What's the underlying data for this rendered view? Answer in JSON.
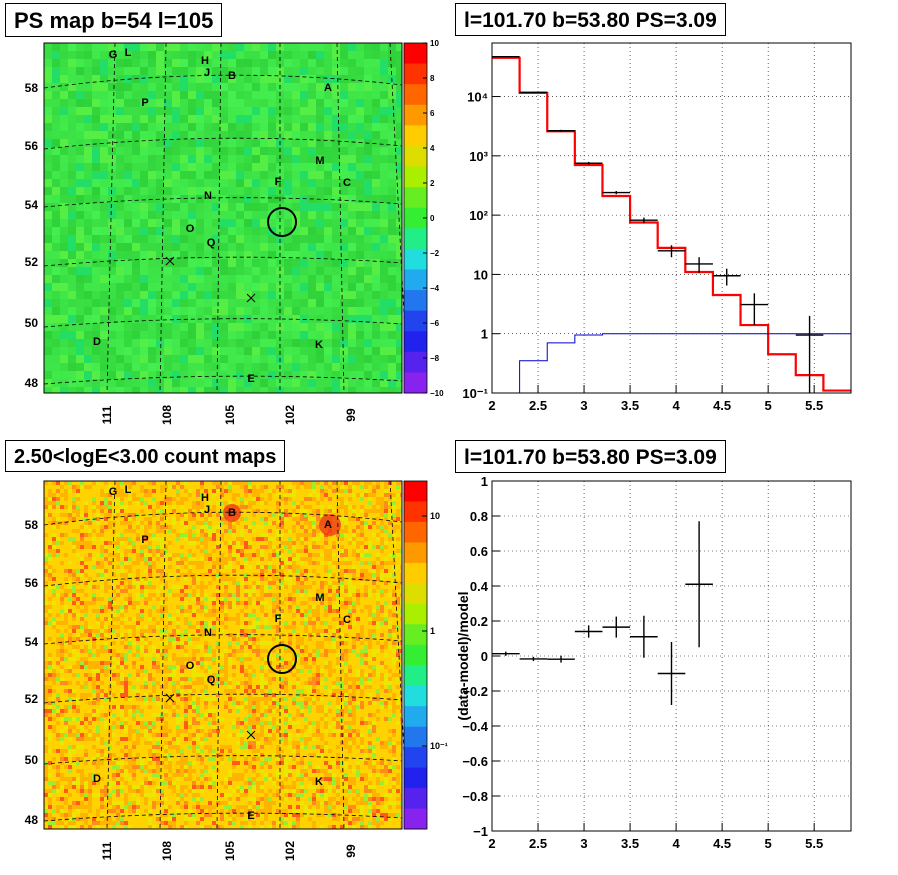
{
  "panels": {
    "ps_map": {
      "title": "PS map b=54 l=105",
      "x_ticks": [
        "111",
        "108",
        "105",
        "102",
        "99"
      ],
      "y_ticks": [
        "58",
        "56",
        "54",
        "52",
        "50",
        "48"
      ],
      "colorbar_ticks": [
        "10",
        "8",
        "6",
        "4",
        "2",
        "0",
        "−2",
        "−4",
        "−6",
        "−8",
        "−10"
      ]
    },
    "count_map": {
      "title": "2.50<logE<3.00 count maps",
      "x_ticks": [
        "111",
        "108",
        "105",
        "102",
        "99"
      ],
      "y_ticks": [
        "58",
        "56",
        "54",
        "52",
        "50",
        "48"
      ],
      "colorbar_ticks": [
        "10",
        "1",
        "10⁻¹"
      ]
    },
    "spectrum": {
      "title": "l=101.70 b=53.80 PS=3.09"
    },
    "residual": {
      "title": "l=101.70 b=53.80 PS=3.09"
    }
  },
  "source_labels": [
    "G",
    "L",
    "H",
    "J",
    "B",
    "A",
    "P",
    "M",
    "C",
    "F",
    "N",
    "O",
    "Q",
    "D",
    "K",
    "E"
  ],
  "colors": {
    "map_green": "#33ee33",
    "data_black": "#000000",
    "model_red": "#ff0000",
    "background_blue": "#0000cc"
  },
  "chart_data": [
    {
      "type": "line",
      "panel": "spectrum",
      "title": "l=101.70 b=53.80 PS=3.09",
      "xlabel": "",
      "ylabel": "",
      "xlim": [
        2,
        5.9
      ],
      "ylim": [
        0.1,
        80000
      ],
      "y_scale": "log",
      "grid": true,
      "x_ticks": [
        "2",
        "2.5",
        "3",
        "3.5",
        "4",
        "4.5",
        "5",
        "5.5"
      ],
      "y_ticks": [
        "10⁻¹",
        "1",
        "10",
        "10²",
        "10³",
        "10⁴"
      ],
      "series": [
        {
          "style": "step-red-model",
          "edges": [
            2.0,
            2.3,
            2.6,
            2.9,
            3.2,
            3.5,
            3.8,
            4.1,
            4.4,
            4.7,
            5.0,
            5.3,
            5.6,
            5.9
          ],
          "values": [
            45000,
            11500,
            2600,
            700,
            210,
            75,
            28,
            11,
            4.5,
            1.4,
            0.45,
            0.2,
            0.11
          ]
        },
        {
          "style": "step-blue-background",
          "edges": [
            2.0,
            2.3,
            2.6,
            2.9,
            3.2,
            3.5,
            3.8,
            4.1,
            4.4,
            4.7,
            5.0,
            5.3,
            5.6,
            5.9
          ],
          "values": [
            0.1,
            0.35,
            0.7,
            0.95,
            1.0,
            1.0,
            1.0,
            1.0,
            1.0,
            1.0,
            1.0,
            1.0,
            1.0,
            1.0
          ]
        },
        {
          "style": "points-black-data",
          "x": [
            2.15,
            2.45,
            2.75,
            3.05,
            3.35,
            3.65,
            3.95,
            4.25,
            4.55,
            4.85,
            5.45
          ],
          "y": [
            47000,
            11800,
            2650,
            750,
            240,
            82,
            25,
            15,
            9.5,
            3.1,
            0.95
          ],
          "xerr": [
            0.15,
            0.15,
            0.15,
            0.15,
            0.15,
            0.15,
            0.15,
            0.15,
            0.15,
            0.15,
            0.15
          ],
          "ylo": [
            46000,
            11500,
            2550,
            715,
            225,
            73,
            19.5,
            10.5,
            6.5,
            1.4,
            0.1
          ],
          "yhi": [
            48000,
            12100,
            2750,
            790,
            255,
            91,
            31,
            19.5,
            12.5,
            4.8,
            2.0
          ]
        }
      ]
    },
    {
      "type": "scatter",
      "panel": "residual",
      "title": "l=101.70 b=53.80 PS=3.09",
      "xlabel": "",
      "ylabel": "(data-model)/model",
      "xlim": [
        2,
        5.9
      ],
      "ylim": [
        -1,
        1
      ],
      "grid": true,
      "x_ticks": [
        "2",
        "2.5",
        "3",
        "3.5",
        "4",
        "4.5",
        "5",
        "5.5"
      ],
      "y_ticks": [
        "1",
        "0.8",
        "0.6",
        "0.4",
        "0.2",
        "0",
        "−0.2",
        "−0.4",
        "−0.6",
        "−0.8",
        "−1"
      ],
      "series": [
        {
          "x": [
            2.15,
            2.45,
            2.75,
            3.05,
            3.35,
            3.65,
            3.95,
            4.25
          ],
          "y": [
            0.013,
            -0.017,
            -0.018,
            0.14,
            0.165,
            0.11,
            -0.1,
            0.41
          ],
          "xerr": [
            0.15,
            0.15,
            0.15,
            0.15,
            0.15,
            0.15,
            0.15,
            0.15
          ],
          "yerr": [
            0.012,
            0.012,
            0.02,
            0.035,
            0.06,
            0.12,
            0.18,
            0.36
          ]
        }
      ]
    }
  ]
}
